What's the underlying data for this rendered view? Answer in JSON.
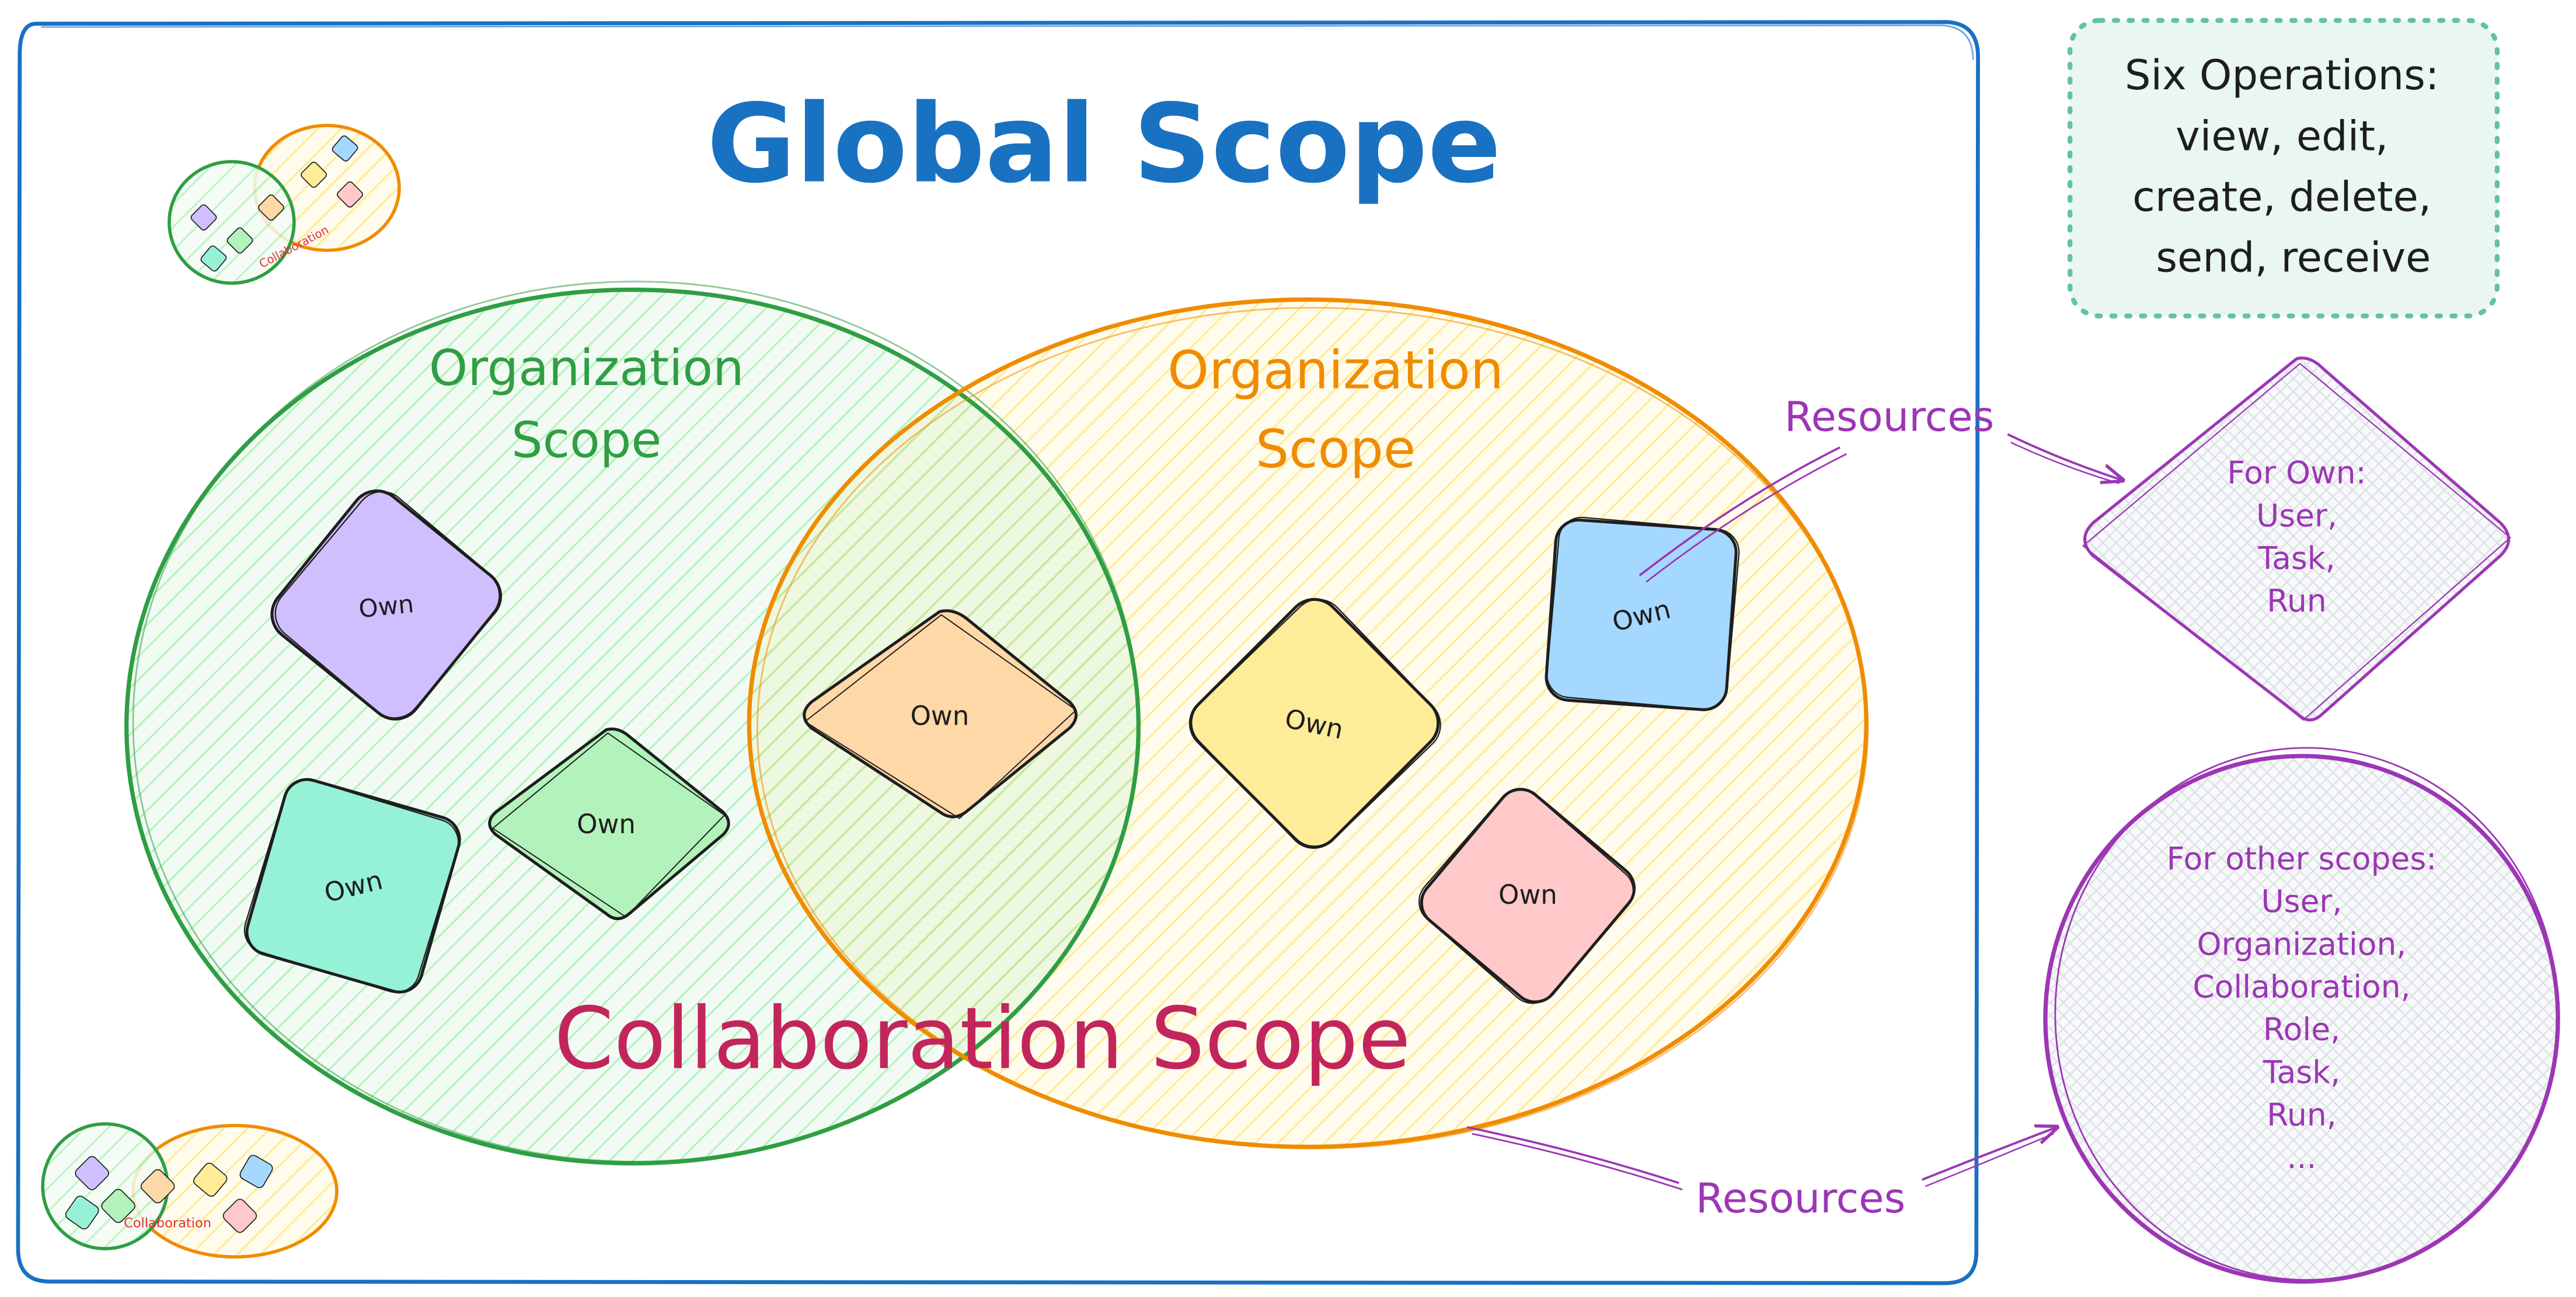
{
  "global_scope": {
    "title": "Global Scope",
    "border_color": "#1971c2"
  },
  "operations_note": {
    "line1": "Six Operations:",
    "line2": "view, edit,",
    "line3": "create, delete,",
    "line4": "send, receive",
    "border_color": "#63c2a0",
    "fill_color": "#eaf7f1"
  },
  "org_left": {
    "label_line1": "Organization",
    "label_line2": "Scope",
    "color": "#2f9e44",
    "hatch_color": "#b2f2bb"
  },
  "org_right": {
    "label_line1": "Organization",
    "label_line2": "Scope",
    "color": "#f08c00",
    "hatch_color": "#ffec99"
  },
  "collaboration_scope": {
    "label": "Collaboration Scope",
    "color": "#c2255c"
  },
  "own_resources": [
    {
      "label": "Own",
      "fill": "#d0bfff"
    },
    {
      "label": "Own",
      "fill": "#96f2d7"
    },
    {
      "label": "Own",
      "fill": "#b2f2bb"
    },
    {
      "label": "Own",
      "fill": "#ffd8a8"
    },
    {
      "label": "Own",
      "fill": "#ffec99"
    },
    {
      "label": "Own",
      "fill": "#a5d8ff"
    },
    {
      "label": "Own",
      "fill": "#ffc9c9"
    }
  ],
  "resources_arrow_top": {
    "label": "Resources"
  },
  "resources_arrow_bottom": {
    "label": "Resources"
  },
  "own_resources_box": {
    "title": "For Own:",
    "items": [
      "User,",
      "Task,",
      "Run"
    ],
    "color": "#9c36b5"
  },
  "other_scopes_box": {
    "title": "For other scopes:",
    "items": [
      "User,",
      "Organization,",
      "Collaboration,",
      "Role,",
      "Task,",
      "Run,",
      "..."
    ],
    "color": "#9c36b5"
  },
  "thumbnails": {
    "top_left_label": "Collaboration",
    "bottom_left_label": "Collaboration"
  }
}
